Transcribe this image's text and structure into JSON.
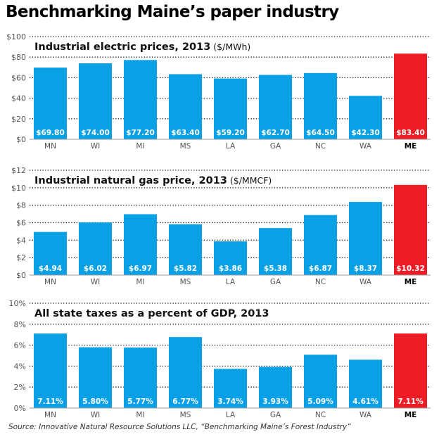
{
  "title": "Benchmarking Maine’s paper industry",
  "source": "Source: Innovative Natural Resource Solutions LLC, “Benchmarking Maine’s Forest Industry”",
  "colors": {
    "bar": "#0aa0e6",
    "highlight": "#ee1c25",
    "grid": "#222222",
    "tick_text": "#555555"
  },
  "chart_data": [
    {
      "type": "bar",
      "title": "Industrial electric prices, 2013",
      "unit": "($/MWh)",
      "categories": [
        "MN",
        "WI",
        "MI",
        "MS",
        "LA",
        "GA",
        "NC",
        "WA",
        "ME"
      ],
      "highlight": "ME",
      "values": [
        69.8,
        74.0,
        77.2,
        63.4,
        59.2,
        62.7,
        64.5,
        42.3,
        83.4
      ],
      "value_labels": [
        "$69.80",
        "$74.00",
        "$77.20",
        "$63.40",
        "$59.20",
        "$62.70",
        "$64.50",
        "$42.30",
        "$83.40"
      ],
      "ylim": [
        0,
        100
      ],
      "yticks": [
        0,
        20,
        40,
        60,
        80,
        100
      ],
      "ytick_labels": [
        "$0",
        "$20",
        "$40",
        "$60",
        "$80",
        "$100"
      ],
      "grid": true
    },
    {
      "type": "bar",
      "title": "Industrial natural gas price, 2013",
      "unit": "($/MMCF)",
      "categories": [
        "MN",
        "WI",
        "MI",
        "MS",
        "LA",
        "GA",
        "NC",
        "WA",
        "ME"
      ],
      "highlight": "ME",
      "values": [
        4.94,
        6.02,
        6.97,
        5.82,
        3.86,
        5.38,
        6.87,
        8.37,
        10.32
      ],
      "value_labels": [
        "$4.94",
        "$6.02",
        "$6.97",
        "$5.82",
        "$3.86",
        "$5.38",
        "$6.87",
        "$8.37",
        "$10.32"
      ],
      "ylim": [
        0,
        12
      ],
      "yticks": [
        0,
        2,
        4,
        6,
        8,
        10,
        12
      ],
      "ytick_labels": [
        "$0",
        "$2",
        "$4",
        "$6",
        "$8",
        "$10",
        "$12"
      ],
      "grid": true
    },
    {
      "type": "bar",
      "title": "All state taxes as a percent of GDP, 2013",
      "unit": "",
      "categories": [
        "MN",
        "WI",
        "MI",
        "MS",
        "LA",
        "GA",
        "NC",
        "WA",
        "ME"
      ],
      "highlight": "ME",
      "values": [
        7.11,
        5.8,
        5.77,
        6.77,
        3.74,
        3.93,
        5.09,
        4.61,
        7.11
      ],
      "value_labels": [
        "7.11%",
        "5.80%",
        "5.77%",
        "6.77%",
        "3.74%",
        "3.93%",
        "5.09%",
        "4.61%",
        "7.11%"
      ],
      "ylim": [
        0,
        10
      ],
      "yticks": [
        0,
        2,
        4,
        6,
        8,
        10
      ],
      "ytick_labels": [
        "0%",
        "2%",
        "4%",
        "6%",
        "8%",
        "10%"
      ],
      "grid": true
    }
  ]
}
